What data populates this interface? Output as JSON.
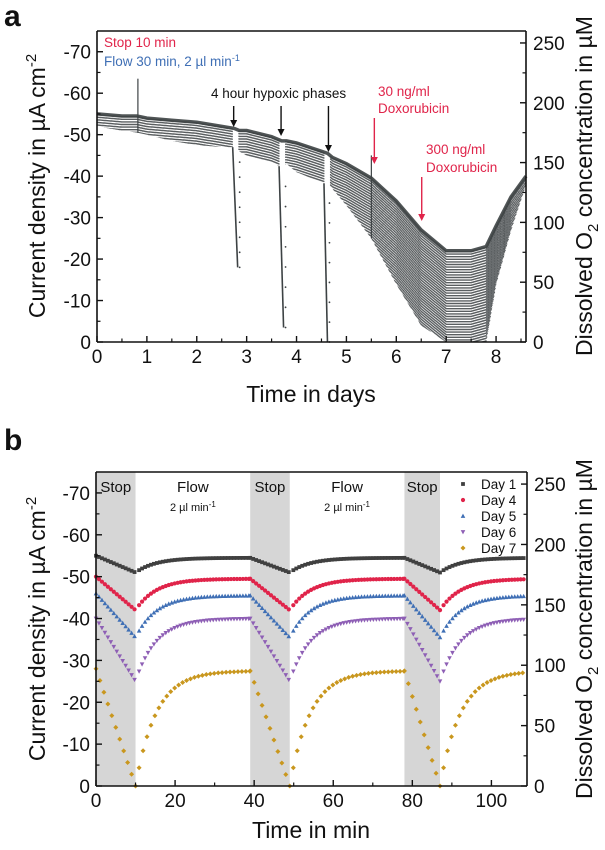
{
  "chart_data": [
    {
      "panel": "a",
      "type": "scatter",
      "xlabel": "Time in days",
      "ylabel": "Current density in µA cm⁻²",
      "ylabel_right": "Dissolved O₂ concentration in µM",
      "xlim": [
        0,
        8.6
      ],
      "ylim": [
        0,
        -75
      ],
      "ylim_right": [
        0,
        260
      ],
      "xticks": [
        "0",
        "1",
        "2",
        "3",
        "4",
        "5",
        "6",
        "7",
        "8"
      ],
      "yticks": [
        "0",
        "-10",
        "-20",
        "-30",
        "-40",
        "-50",
        "-60",
        "-70"
      ],
      "yticks_right": [
        "0",
        "50",
        "100",
        "150",
        "200",
        "250"
      ],
      "legend_text": [
        {
          "text": "Stop 10 min",
          "color": "#e0244a"
        },
        {
          "text": "Flow 30 min, 2 µl min⁻¹",
          "color": "#3f6fb5"
        }
      ],
      "annotations": [
        {
          "text": "4 hour hypoxic phases",
          "color": "#111111",
          "arrows_at_days": [
            2.8,
            3.75,
            4.7
          ]
        },
        {
          "text": "30 ng/ml Doxorubicin",
          "color": "#e0244a",
          "arrow_at_day": 5.7
        },
        {
          "text": "300 ng/ml Doxorubicin",
          "color": "#e0244a",
          "arrow_at_day": 6.65
        }
      ],
      "envelope": {
        "description": "Upper (flow) and lower (stop) envelope of oscillating current density",
        "x": [
          0,
          0.5,
          0.8,
          1.0,
          1.5,
          2.0,
          2.5,
          2.75,
          2.85,
          3.0,
          3.5,
          3.7,
          3.8,
          4.0,
          4.5,
          4.62,
          4.72,
          5.0,
          5.5,
          6.0,
          6.5,
          7.0,
          7.5,
          7.8,
          8.0,
          8.3,
          8.6
        ],
        "upper": [
          -55,
          -54.5,
          -54.5,
          -54,
          -53.5,
          -53,
          -52,
          -51.5,
          -51,
          -51,
          -49.5,
          -48.5,
          -48.5,
          -48,
          -46,
          -45.5,
          -44.5,
          -43,
          -39.5,
          -34,
          -27,
          -22,
          -22,
          -23,
          -28,
          -35,
          -40
        ],
        "lower": [
          -52,
          -51,
          -50.5,
          -50,
          -48.5,
          -47.5,
          -47,
          -47,
          -46,
          -45,
          -43.5,
          -42,
          -43,
          -41,
          -38.5,
          -38,
          -37,
          -33,
          -25,
          -14,
          -4,
          0,
          0,
          0,
          -14,
          -27,
          -38
        ]
      },
      "hypoxic_drops": [
        {
          "start_day": 2.72,
          "min_day": 2.82,
          "min_value": -18
        },
        {
          "start_day": 3.65,
          "min_day": 3.74,
          "min_value": -3.5
        },
        {
          "start_day": 4.55,
          "min_day": 4.62,
          "min_value": 0
        }
      ],
      "spikes": [
        {
          "day": 0.82,
          "value": -63.5
        },
        {
          "day": 5.5,
          "value": -45
        }
      ]
    },
    {
      "panel": "b",
      "type": "scatter",
      "xlabel": "Time in min",
      "ylabel": "Current density in µA cm⁻²",
      "ylabel_right": "Dissolved O₂ concentration in µM",
      "xlim": [
        0,
        109
      ],
      "ylim": [
        0,
        -75
      ],
      "ylim_right": [
        0,
        260
      ],
      "xticks": [
        "0",
        "20",
        "40",
        "60",
        "80",
        "100"
      ],
      "yticks": [
        "0",
        "-10",
        "-20",
        "-30",
        "-40",
        "-50",
        "-60",
        "-70"
      ],
      "yticks_right": [
        "0",
        "50",
        "100",
        "150",
        "200",
        "250"
      ],
      "phases": [
        {
          "label": "Stop",
          "start": 0,
          "end": 10,
          "shaded": true
        },
        {
          "label": "Flow",
          "sublabel": "2 µl min⁻¹",
          "start": 10,
          "end": 39,
          "shaded": false
        },
        {
          "label": "Stop",
          "start": 39,
          "end": 49,
          "shaded": true
        },
        {
          "label": "Flow",
          "sublabel": "2 µl min⁻¹",
          "start": 49,
          "end": 78,
          "shaded": false
        },
        {
          "label": "Stop",
          "start": 78,
          "end": 87,
          "shaded": true
        }
      ],
      "legend_position": "top-right",
      "series": [
        {
          "name": "Day 1",
          "marker": "square",
          "color": "#404040",
          "flow_level": -54.5,
          "stop_min": -51,
          "start_level": -55
        },
        {
          "name": "Day 4",
          "marker": "circle",
          "color": "#e0244a",
          "flow_level": -49.5,
          "stop_min": -42,
          "start_level": -50
        },
        {
          "name": "Day 5",
          "marker": "triangle-up",
          "color": "#3f6fb5",
          "flow_level": -45.5,
          "stop_min": -35.5,
          "start_level": -46
        },
        {
          "name": "Day 6",
          "marker": "triangle-down",
          "color": "#8e5fb5",
          "flow_level": -40,
          "stop_min": -25,
          "start_level": -40
        },
        {
          "name": "Day 7",
          "marker": "diamond",
          "color": "#c9971e",
          "flow_level": -27.5,
          "stop_min": 0,
          "start_level": -28
        }
      ]
    }
  ],
  "panels": {
    "a": {
      "label": "a",
      "legend_stop": "Stop 10 min",
      "legend_flow_prefix": "Flow 30 min, 2 µl min",
      "legend_flow_sup": "-1",
      "hypoxic_label": "4 hour hypoxic phases",
      "dox30_line1": "30 ng/ml",
      "dox30_line2": "Doxorubicin",
      "dox300_line1": "300 ng/ml",
      "dox300_line2": "Doxorubicin",
      "xlabel": "Time in days",
      "ylabel_prefix": "Current density in µA cm",
      "ylabel_sup": "-2",
      "ylabel_right_prefix": "Dissolved O",
      "ylabel_right_sub": "2",
      "ylabel_right_suffix": " concentration in µM"
    },
    "b": {
      "label": "b",
      "stop_label": "Stop",
      "flow_label": "Flow",
      "flow_sub_prefix": "2 µl min",
      "flow_sub_sup": "-1",
      "xlabel": "Time in min",
      "ylabel_prefix": "Current density in µA cm",
      "ylabel_sup": "-2",
      "ylabel_right_prefix": "Dissolved O",
      "ylabel_right_sub": "2",
      "ylabel_right_suffix": " concentration in µM"
    }
  },
  "colors": {
    "axis": "#111111",
    "data_gray": "#3d4244",
    "shade": "#d6d6d6",
    "red_annot": "#e0244a",
    "blue_annot": "#3f6fb5"
  }
}
